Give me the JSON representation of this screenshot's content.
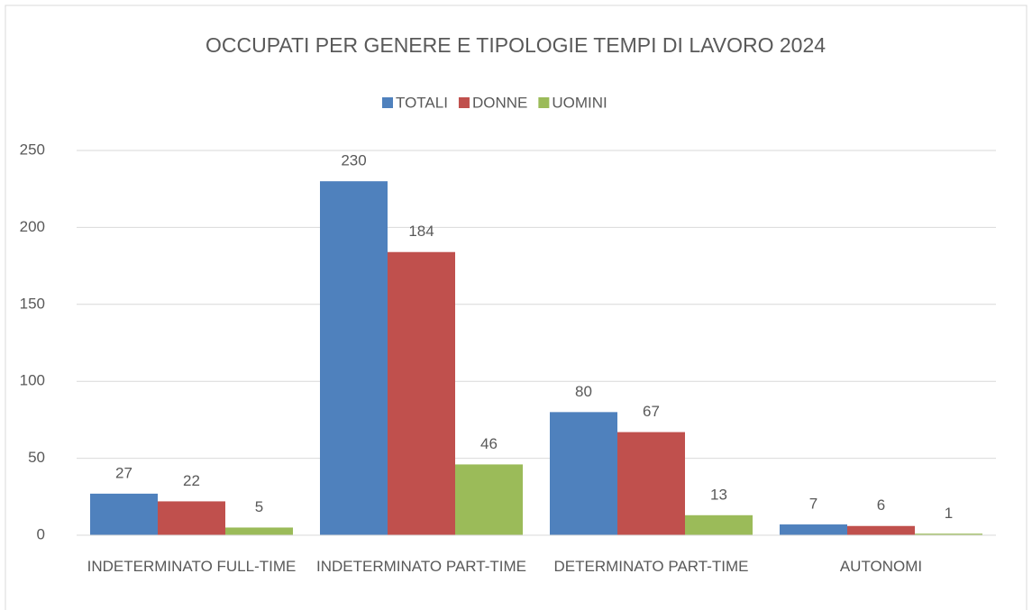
{
  "chart_data": {
    "type": "bar",
    "title": "OCCUPATI PER GENERE E TIPOLOGIE TEMPI DI LAVORO 2024",
    "categories": [
      "INDETERMINATO FULL-TIME",
      "INDETERMINATO PART-TIME",
      "DETERMINATO PART-TIME",
      "AUTONOMI"
    ],
    "series": [
      {
        "name": "TOTALI",
        "color": "#4f81bd",
        "values": [
          27,
          230,
          80,
          7
        ]
      },
      {
        "name": "DONNE",
        "color": "#c0504d",
        "values": [
          22,
          184,
          67,
          6
        ]
      },
      {
        "name": "UOMINI",
        "color": "#9bbb59",
        "values": [
          5,
          46,
          13,
          1
        ]
      }
    ],
    "ylim": [
      0,
      250
    ],
    "yticks": [
      0,
      50,
      100,
      150,
      200,
      250
    ],
    "grid": true,
    "legend": "top"
  }
}
